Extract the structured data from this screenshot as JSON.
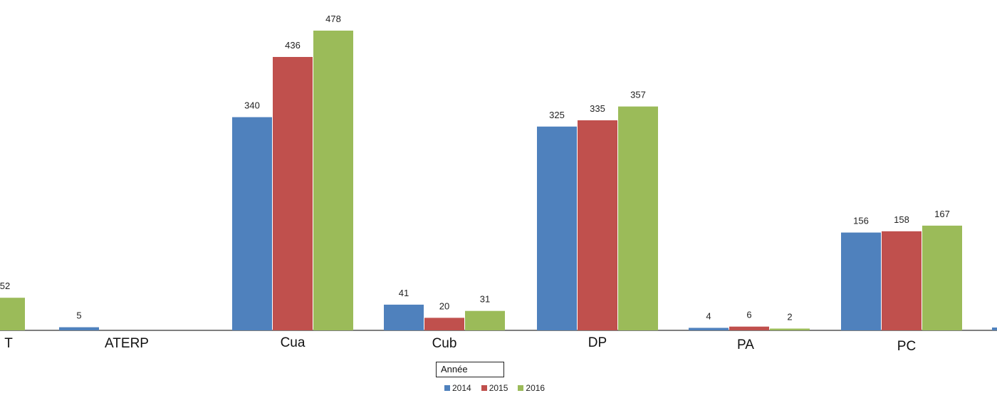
{
  "chart_data": {
    "type": "bar",
    "categories": [
      "T",
      "ATERP",
      "Cua",
      "Cub",
      "DP",
      "PA",
      "PC"
    ],
    "series": [
      {
        "name": "2014",
        "values": [
          null,
          5,
          340,
          41,
          325,
          4,
          156
        ]
      },
      {
        "name": "2015",
        "values": [
          null,
          null,
          436,
          20,
          335,
          6,
          158
        ]
      },
      {
        "name": "2016",
        "values": [
          52,
          null,
          478,
          31,
          357,
          2,
          167
        ]
      }
    ],
    "colors": {
      "2014": "#4f81bd",
      "2015": "#c0504d",
      "2016": "#9bbb59"
    },
    "legend_title": "Année",
    "legend_placement": "bottom-center",
    "ylim": [
      0,
      520
    ],
    "grid": false
  }
}
